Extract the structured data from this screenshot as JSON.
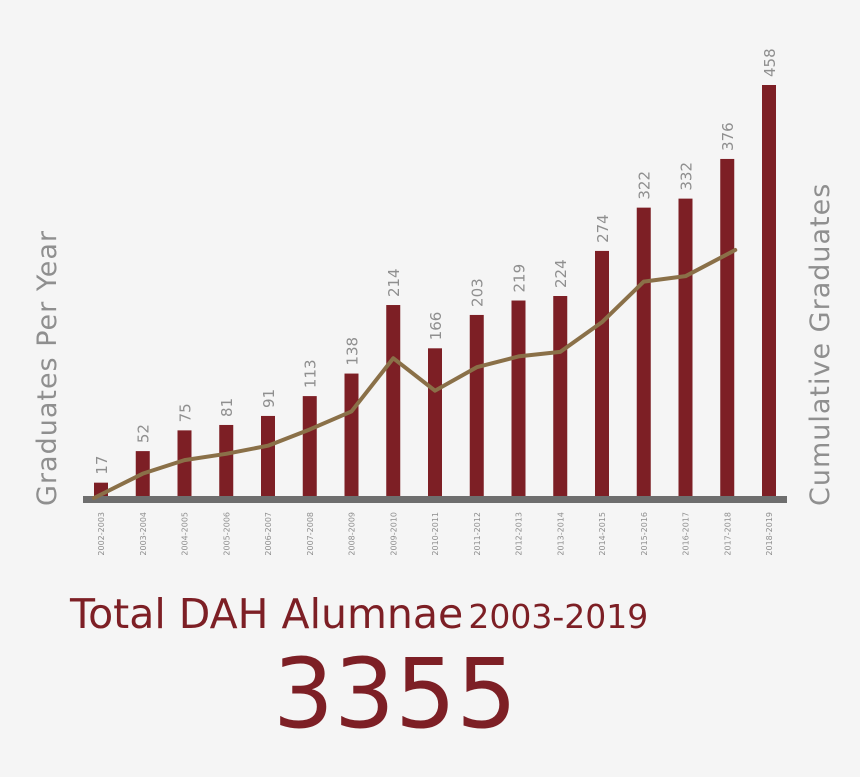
{
  "chart_data": {
    "type": "bar",
    "categories": [
      "2002-2003",
      "2003-2004",
      "2004-2005",
      "2005-2006",
      "2006-2007",
      "2007-2008",
      "2008-2009",
      "2009-2010",
      "2010-2011",
      "2011-2012",
      "2012-2013",
      "2013-2014",
      "2014-2015",
      "2015-2016",
      "2016-2017",
      "2017-2018",
      "2018-2019"
    ],
    "series": [
      {
        "type": "bar",
        "values": [
          17,
          52,
          75,
          81,
          91,
          113,
          138,
          214,
          166,
          203,
          219,
          224,
          274,
          322,
          332,
          376,
          458
        ]
      },
      {
        "type": "line",
        "values": [
          0,
          27,
          42,
          49,
          58,
          76,
          96,
          155,
          119,
          145,
          157,
          162,
          195,
          240,
          246,
          275,
          null
        ]
      }
    ],
    "ylabel": "Graduates Per Year",
    "ylabel_right": "Cumulative Graduates",
    "ylim": [
      0,
      460
    ],
    "colors": {
      "bar": "#7d1f25",
      "line": "#8a7048",
      "axis": "#6e6e6e",
      "label": "#8f8f8f"
    }
  },
  "title": {
    "main": "Total DAH Alumnae",
    "years": "2003-2019"
  },
  "total": "3355"
}
